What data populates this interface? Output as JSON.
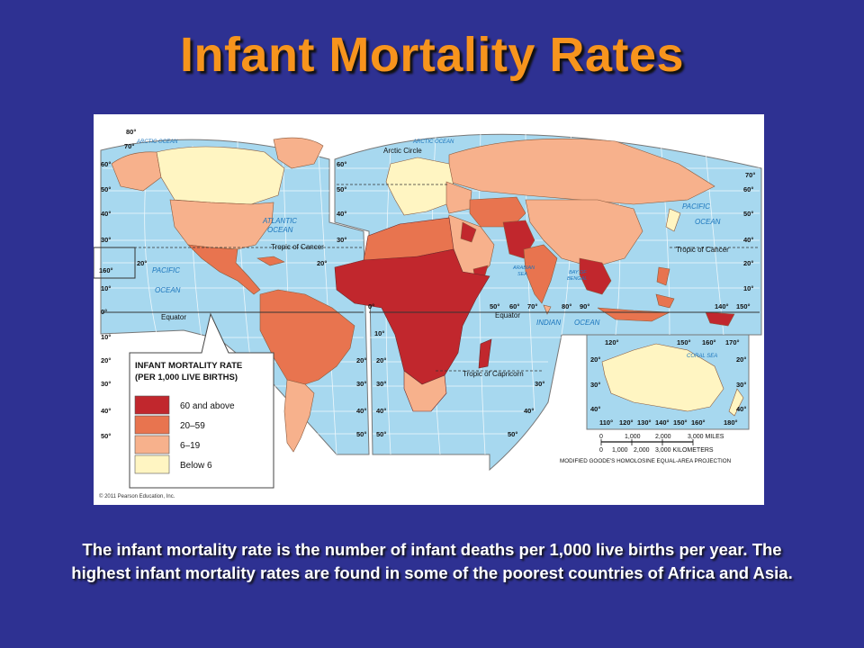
{
  "slide": {
    "title": "Infant Mortality Rates",
    "caption": "The infant mortality rate is the number of infant deaths per 1,000 live births per year. The highest infant mortality rates are found in some of the poorest countries of Africa and Asia."
  },
  "map": {
    "legend": {
      "title_line1": "INFANT MORTALITY RATE",
      "title_line2": "(PER 1,000 LIVE BIRTHS)",
      "classes": [
        {
          "label": "60 and above",
          "color": "#c1272d"
        },
        {
          "label": "20–59",
          "color": "#e8744f"
        },
        {
          "label": "6–19",
          "color": "#f7b18c"
        },
        {
          "label": "Below 6",
          "color": "#fff5c2"
        }
      ]
    },
    "ocean_color": "#a7d8ef",
    "oceans": {
      "arctic_left": "ARCTIC OCEAN",
      "arctic_right": "ARCTIC OCEAN",
      "atlantic_1": "ATLANTIC",
      "atlantic_2": "OCEAN",
      "pacific_left_1": "PACIFIC",
      "pacific_left_2": "OCEAN",
      "pacific_right_1": "PACIFIC",
      "pacific_right_2": "OCEAN",
      "indian_1": "INDIAN",
      "indian_2": "OCEAN",
      "arabian_1": "ARABIAN",
      "arabian_2": "SEA",
      "bengal_1": "BAY OF",
      "bengal_2": "BENGAL",
      "coral": "CORAL SEA"
    },
    "lines": {
      "arctic_circle": "Arctic Circle",
      "tropic_cancer_left": "Tropic of Cancer",
      "tropic_cancer_right": "Tropic of Cancer",
      "equator_left": "Equator",
      "equator_right": "Equator",
      "tropic_capricorn": "Tropic of Capricorn"
    },
    "scale": {
      "miles": [
        "0",
        "1,000",
        "2,000",
        "3,000 MILES"
      ],
      "km": [
        "0",
        "1,000",
        "2,000",
        "3,000 KILOMETERS"
      ]
    },
    "projection": "MODIFIED GOODE'S HOMOLOSINE EQUAL-AREA PROJECTION",
    "copyright": "© 2011 Pearson Education, Inc.",
    "lat_labels": [
      "80°",
      "70°",
      "60°",
      "50°",
      "40°",
      "30°",
      "20°",
      "10°",
      "0°",
      "10°",
      "20°",
      "30°",
      "40°",
      "50°"
    ],
    "inset_left_labels": [
      "160°",
      "20°"
    ],
    "lon_labels": [
      "0°",
      "50°",
      "60°",
      "70°",
      "80°",
      "90°",
      "140°",
      "150°"
    ],
    "inset_top_labels": [
      "120°",
      "150°",
      "160°",
      "170°"
    ],
    "inset_bottom_labels": [
      "110°",
      "120°",
      "130°",
      "140°",
      "150°",
      "160°",
      "180°"
    ],
    "inset_side_labels": [
      "20°",
      "30°",
      "40°",
      "50°"
    ]
  }
}
